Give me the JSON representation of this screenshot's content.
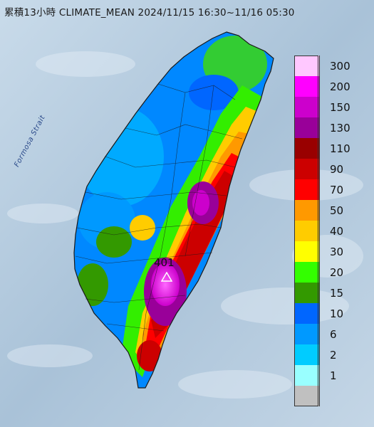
{
  "title": "累積13小時 CLIMATE_MEAN 2024/11/15 16:30~11/16 05:30",
  "strait_label": "Formosa Strait",
  "peak_value": "401",
  "legend": {
    "items": [
      {
        "label": "300",
        "color": "#ffc8ff"
      },
      {
        "label": "200",
        "color": "#ff00ff"
      },
      {
        "label": "150",
        "color": "#cc00cc"
      },
      {
        "label": "130",
        "color": "#990099"
      },
      {
        "label": "110",
        "color": "#990000"
      },
      {
        "label": "90",
        "color": "#cc0000"
      },
      {
        "label": "70",
        "color": "#ff0000"
      },
      {
        "label": "50",
        "color": "#ff9900"
      },
      {
        "label": "40",
        "color": "#ffcc00"
      },
      {
        "label": "30",
        "color": "#ffff00"
      },
      {
        "label": "20",
        "color": "#33ff00"
      },
      {
        "label": "15",
        "color": "#339900"
      },
      {
        "label": "10",
        "color": "#0066ff"
      },
      {
        "label": "6",
        "color": "#0099ff"
      },
      {
        "label": "2",
        "color": "#00ccff"
      },
      {
        "label": "1",
        "color": "#99ffff"
      },
      {
        "label": "",
        "color": "#c0c0c0"
      }
    ]
  },
  "colors": {
    "sea": "#b9cfe0",
    "island_outline": "#1a1a1a"
  }
}
